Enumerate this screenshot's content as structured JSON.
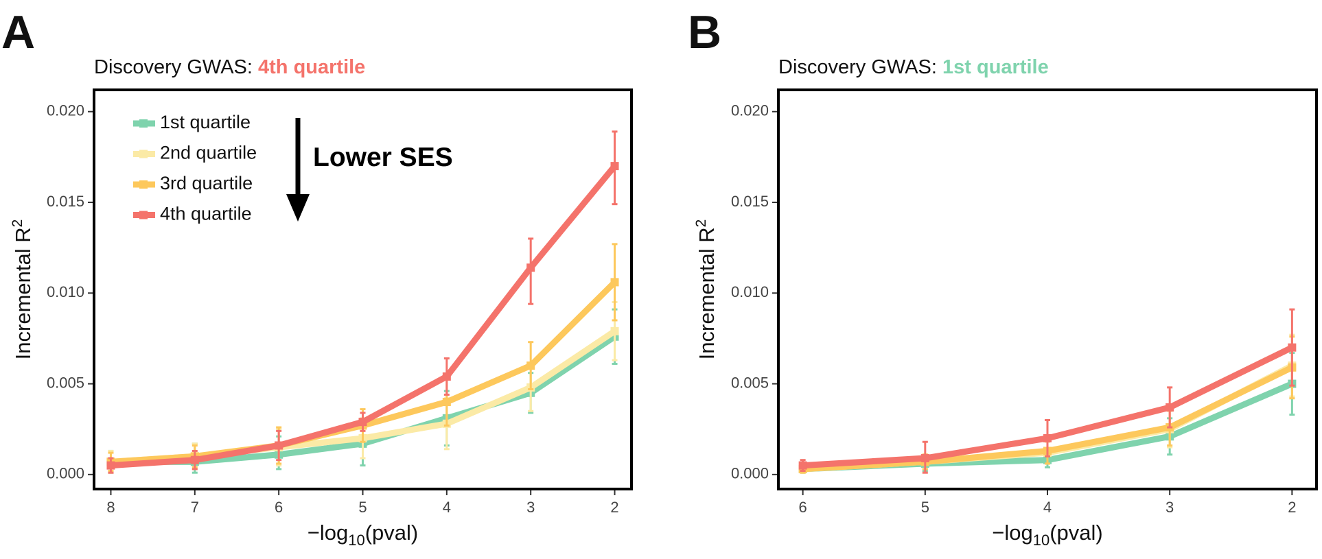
{
  "chart_data": [
    {
      "panel": "A",
      "type": "line",
      "title_prefix": "Discovery GWAS: ",
      "title_highlight": "4th quartile",
      "title_highlight_color": "#f4736b",
      "xlabel_main": "−log",
      "xlabel_sub": "10",
      "xlabel_end": "(pval)",
      "ylabel_main": "Incremental R",
      "ylabel_sup": "2",
      "x": [
        8,
        7,
        6,
        5,
        4,
        3,
        2
      ],
      "xticks": [
        "8",
        "7",
        "6",
        "5",
        "4",
        "3",
        "2"
      ],
      "xlim": [
        8.2,
        1.8
      ],
      "ylim": [
        -0.0008,
        0.0212
      ],
      "yticks": [
        "0.000",
        "0.005",
        "0.010",
        "0.015",
        "0.020"
      ],
      "legend_position": "top-left",
      "annotation": {
        "text": "Lower SES",
        "arrow": "down"
      },
      "series": [
        {
          "name": "1st quartile",
          "color": "#7fd3ad",
          "values": [
            0.0007,
            0.0007,
            0.0011,
            0.0017,
            0.0031,
            0.0045,
            0.0076
          ],
          "err_low": [
            0.0001,
            0.0001,
            0.0003,
            0.0005,
            0.0016,
            0.0034,
            0.0061
          ],
          "err_high": [
            0.0013,
            0.0017,
            0.0021,
            0.0029,
            0.0046,
            0.0056,
            0.0091
          ]
        },
        {
          "name": "2nd quartile",
          "color": "#fbeaa6",
          "values": [
            0.0007,
            0.001,
            0.0015,
            0.002,
            0.0028,
            0.0048,
            0.0079
          ],
          "err_low": [
            0.0001,
            0.0003,
            0.0005,
            0.0009,
            0.0014,
            0.0035,
            0.0063
          ],
          "err_high": [
            0.0013,
            0.0017,
            0.0025,
            0.0031,
            0.0042,
            0.0061,
            0.0095
          ]
        },
        {
          "name": "3rd quartile",
          "color": "#fdc85c",
          "values": [
            0.0007,
            0.001,
            0.0016,
            0.0027,
            0.004,
            0.006,
            0.0106
          ],
          "err_low": [
            0.0002,
            0.0004,
            0.0006,
            0.0018,
            0.0027,
            0.0047,
            0.0085
          ],
          "err_high": [
            0.0012,
            0.0016,
            0.0026,
            0.0036,
            0.0053,
            0.0073,
            0.0127
          ]
        },
        {
          "name": "4th quartile",
          "color": "#f4736b",
          "values": [
            0.0005,
            0.0008,
            0.0016,
            0.0029,
            0.0054,
            0.0114,
            0.017
          ],
          "err_low": [
            0.0001,
            0.0003,
            0.0008,
            0.0024,
            0.0044,
            0.0094,
            0.0149
          ],
          "err_high": [
            0.0009,
            0.0013,
            0.0024,
            0.0034,
            0.0064,
            0.013,
            0.0189
          ]
        }
      ]
    },
    {
      "panel": "B",
      "type": "line",
      "title_prefix": "Discovery GWAS: ",
      "title_highlight": "1st quartile",
      "title_highlight_color": "#7fd3ad",
      "xlabel_main": "−log",
      "xlabel_sub": "10",
      "xlabel_end": "(pval)",
      "ylabel_main": "Incremental R",
      "ylabel_sup": "2",
      "x": [
        6,
        5,
        4,
        3,
        2
      ],
      "xticks": [
        "6",
        "5",
        "4",
        "3",
        "2"
      ],
      "xlim": [
        6.2,
        1.8
      ],
      "ylim": [
        -0.0008,
        0.0212
      ],
      "yticks": [
        "0.000",
        "0.005",
        "0.010",
        "0.015",
        "0.020"
      ],
      "series": [
        {
          "name": "1st quartile",
          "color": "#7fd3ad",
          "values": [
            0.0003,
            0.0006,
            0.0008,
            0.0021,
            0.005
          ],
          "err_low": [
            0.0001,
            0.0002,
            0.0004,
            0.0011,
            0.0033
          ],
          "err_high": [
            0.0005,
            0.001,
            0.0012,
            0.0031,
            0.0067
          ]
        },
        {
          "name": "2nd quartile",
          "color": "#fbeaa6",
          "values": [
            0.0003,
            0.0007,
            0.0012,
            0.0025,
            0.006
          ],
          "err_low": [
            0.0001,
            0.0003,
            0.0006,
            0.0015,
            0.0043
          ],
          "err_high": [
            0.0005,
            0.0011,
            0.0018,
            0.0035,
            0.0077
          ]
        },
        {
          "name": "3rd quartile",
          "color": "#fdc85c",
          "values": [
            0.0003,
            0.0007,
            0.0013,
            0.0026,
            0.0059
          ],
          "err_low": [
            0.0001,
            0.0003,
            0.0006,
            0.0016,
            0.0042
          ],
          "err_high": [
            0.0005,
            0.0011,
            0.002,
            0.0036,
            0.0076
          ]
        },
        {
          "name": "4th quartile",
          "color": "#f4736b",
          "values": [
            0.0005,
            0.0009,
            0.002,
            0.0037,
            0.007
          ],
          "err_low": [
            0.0002,
            0.0001,
            0.001,
            0.0026,
            0.0049
          ],
          "err_high": [
            0.0008,
            0.0018,
            0.003,
            0.0048,
            0.0091
          ]
        }
      ]
    }
  ]
}
